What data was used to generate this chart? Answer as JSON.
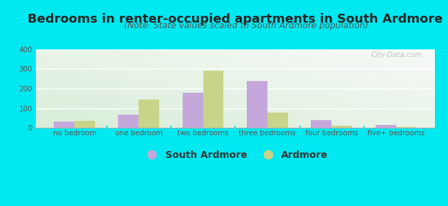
{
  "title": "Bedrooms in renter-occupied apartments in South Ardmore",
  "subtitle": "(Note: State values scaled to South Ardmore population)",
  "categories": [
    "no bedroom",
    "one bedroom",
    "two bedrooms",
    "three bedrooms",
    "four bedrooms",
    "five+ bedrooms"
  ],
  "south_ardmore": [
    30,
    65,
    180,
    240,
    40,
    15
  ],
  "ardmore": [
    35,
    145,
    290,
    78,
    10,
    5
  ],
  "bar_color_sa": "#c4a8dc",
  "bar_color_ar": "#c8d48a",
  "background_outer": "#00e8f0",
  "ylim": [
    0,
    400
  ],
  "yticks": [
    0,
    100,
    200,
    300,
    400
  ],
  "watermark": "City-Data.com",
  "legend_sa": "South Ardmore",
  "legend_ar": "Ardmore",
  "title_fontsize": 13,
  "subtitle_fontsize": 9,
  "tick_fontsize": 7.5,
  "legend_fontsize": 10
}
